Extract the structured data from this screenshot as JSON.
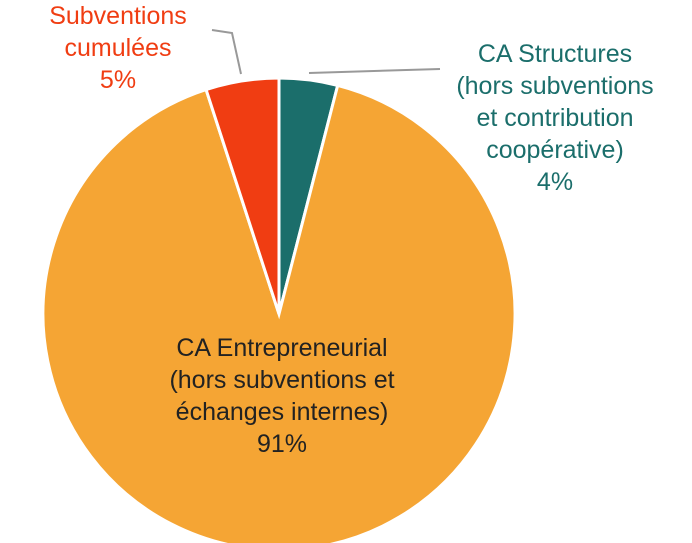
{
  "chart_data": {
    "type": "pie",
    "categories": [
      "CA Structures\n(hors subventions\net contribution\ncoopérative)",
      "CA Entrepreneurial\n(hors subventions et\néchanges internes)",
      "Subventions\ncumulées"
    ],
    "values": [
      4,
      91,
      5
    ],
    "value_labels": [
      "4%",
      "91%",
      "5%"
    ],
    "colors": [
      "#1b6e6b",
      "#f5a534",
      "#f03d12"
    ],
    "label_colors": [
      "#1b6e6b",
      "#222222",
      "#f03d12"
    ]
  }
}
